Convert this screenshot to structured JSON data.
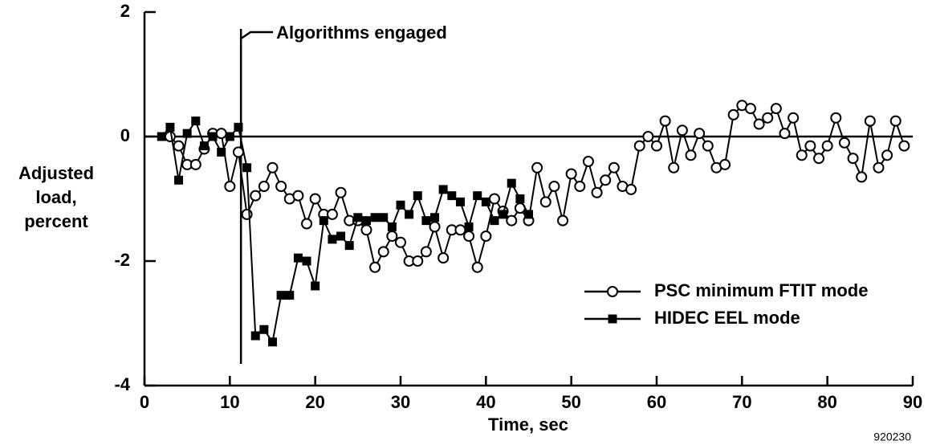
{
  "chart_data": {
    "type": "line",
    "xlabel": "Time, sec",
    "ylabel": [
      "Adjusted",
      "load,",
      "percent"
    ],
    "annotation": {
      "text": "Algorithms engaged",
      "x": 11.3
    },
    "figure_number": "920230",
    "xlim": [
      0,
      90
    ],
    "ylim": [
      -4,
      2
    ],
    "xticks": [
      0,
      10,
      20,
      30,
      40,
      50,
      60,
      70,
      80,
      90
    ],
    "yticks": [
      -4,
      -2,
      0,
      2
    ],
    "legend": "lower right",
    "series": [
      {
        "name": "PSC minimum FTIT mode",
        "marker": "circle",
        "color": "#000",
        "x": [
          3,
          4,
          5,
          6,
          7,
          8,
          9,
          10,
          11,
          12,
          13,
          14,
          15,
          16,
          17,
          18,
          19,
          20,
          21,
          22,
          23,
          24,
          25,
          26,
          27,
          28,
          29,
          30,
          31,
          32,
          33,
          34,
          35,
          36,
          37,
          38,
          39,
          40,
          41,
          42,
          43,
          44,
          45,
          46,
          47,
          48,
          49,
          50,
          51,
          52,
          53,
          54,
          55,
          56,
          57,
          58,
          59,
          60,
          61,
          62,
          63,
          64,
          65,
          66,
          67,
          68,
          69,
          70,
          71,
          72,
          73,
          74,
          75,
          76,
          77,
          78,
          79,
          80,
          81,
          82,
          83,
          84,
          85,
          86,
          87,
          88,
          89
        ],
        "values": [
          0,
          -0.15,
          -0.45,
          -0.45,
          -0.2,
          0.05,
          0.05,
          -0.8,
          -0.25,
          -1.25,
          -0.95,
          -0.8,
          -0.5,
          -0.8,
          -1.0,
          -0.95,
          -1.4,
          -1.0,
          -1.25,
          -1.25,
          -0.9,
          -1.35,
          -1.35,
          -1.5,
          -2.1,
          -1.85,
          -1.6,
          -1.7,
          -2.0,
          -2.0,
          -1.85,
          -1.45,
          -1.95,
          -1.5,
          -1.5,
          -1.6,
          -2.1,
          -1.6,
          -1.0,
          -1.2,
          -1.35,
          -1.15,
          -1.35,
          -0.5,
          -1.05,
          -0.8,
          -1.35,
          -0.6,
          -0.8,
          -0.4,
          -0.9,
          -0.7,
          -0.5,
          -0.8,
          -0.85,
          -0.15,
          0,
          -0.15,
          0.25,
          -0.5,
          0.1,
          -0.3,
          0.05,
          -0.15,
          -0.5,
          -0.45,
          0.35,
          0.5,
          0.45,
          0.2,
          0.3,
          0.45,
          0.05,
          0.3,
          -0.3,
          -0.15,
          -0.35,
          -0.15,
          0.3,
          -0.1,
          -0.35,
          -0.65,
          0.25,
          -0.5,
          -0.3,
          0.25,
          -0.15
        ]
      },
      {
        "name": "HIDEC EEL mode",
        "marker": "square",
        "color": "#000",
        "x": [
          2,
          3,
          4,
          5,
          6,
          7,
          8,
          9,
          10,
          11,
          12,
          13,
          14,
          15,
          16,
          17,
          18,
          19,
          20,
          21,
          22,
          23,
          24,
          25,
          26,
          27,
          28,
          29,
          30,
          31,
          32,
          33,
          34,
          35,
          36,
          37,
          38,
          39,
          40,
          41,
          42,
          43,
          44,
          45
        ],
        "values": [
          0,
          0.15,
          -0.7,
          0.05,
          0.25,
          -0.15,
          0,
          -0.25,
          0,
          0.15,
          -0.5,
          -3.2,
          -3.1,
          -3.3,
          -2.55,
          -2.55,
          -1.95,
          -2.0,
          -2.4,
          -1.35,
          -1.65,
          -1.6,
          -1.75,
          -1.3,
          -1.35,
          -1.3,
          -1.3,
          -1.45,
          -1.1,
          -1.25,
          -0.95,
          -1.35,
          -1.3,
          -0.85,
          -0.95,
          -1.05,
          -1.45,
          -0.95,
          -1.05,
          -1.35,
          -1.25,
          -0.75,
          -1.0,
          -1.25
        ]
      }
    ]
  }
}
